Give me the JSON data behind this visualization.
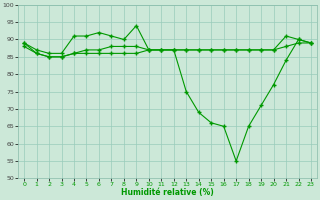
{
  "xlabel": "Humidité relative (%)",
  "background_color": "#cce8d8",
  "grid_color": "#99ccbb",
  "line_color": "#009900",
  "xlim": [
    -0.5,
    23.5
  ],
  "ylim": [
    50,
    100
  ],
  "yticks": [
    50,
    55,
    60,
    65,
    70,
    75,
    80,
    85,
    90,
    95,
    100
  ],
  "xticks": [
    0,
    1,
    2,
    3,
    4,
    5,
    6,
    7,
    8,
    9,
    10,
    11,
    12,
    13,
    14,
    15,
    16,
    17,
    18,
    19,
    20,
    21,
    22,
    23
  ],
  "series": [
    {
      "x": [
        0,
        1,
        2,
        3,
        4,
        5,
        6,
        7,
        8,
        9,
        10,
        11,
        12,
        13,
        14,
        15,
        16,
        17,
        18,
        19,
        20,
        21,
        22,
        23
      ],
      "y": [
        89,
        87,
        86,
        86,
        91,
        91,
        92,
        91,
        90,
        94,
        87,
        87,
        87,
        75,
        69,
        66,
        65,
        55,
        65,
        71,
        77,
        84,
        90,
        89
      ]
    },
    {
      "x": [
        0,
        1,
        2,
        3,
        4,
        5,
        6,
        7,
        8,
        9,
        10,
        11,
        12,
        13,
        14,
        15,
        16,
        17,
        18,
        19,
        20,
        21,
        22,
        23
      ],
      "y": [
        88,
        86,
        85,
        85,
        86,
        86,
        86,
        86,
        86,
        86,
        87,
        87,
        87,
        87,
        87,
        87,
        87,
        87,
        87,
        87,
        87,
        88,
        89,
        89
      ]
    },
    {
      "x": [
        0,
        1,
        2,
        3,
        4,
        5,
        6,
        7,
        8,
        9,
        10,
        11,
        12,
        13,
        14,
        15,
        16,
        17,
        18,
        19,
        20,
        21,
        22,
        23
      ],
      "y": [
        89,
        86,
        85,
        85,
        86,
        87,
        87,
        88,
        88,
        88,
        87,
        87,
        87,
        87,
        87,
        87,
        87,
        87,
        87,
        87,
        87,
        91,
        90,
        89
      ]
    }
  ]
}
